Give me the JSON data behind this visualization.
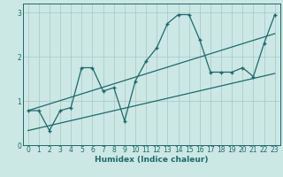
{
  "title": "",
  "xlabel": "Humidex (Indice chaleur)",
  "bg_color": "#cce8e4",
  "grid_color": "#aacccc",
  "line_color": "#1a6b6b",
  "xlim": [
    -0.5,
    23.5
  ],
  "ylim": [
    0,
    3.2
  ],
  "xticks": [
    0,
    1,
    2,
    3,
    4,
    5,
    6,
    7,
    8,
    9,
    10,
    11,
    12,
    13,
    14,
    15,
    16,
    17,
    18,
    19,
    20,
    21,
    22,
    23
  ],
  "yticks": [
    0,
    1,
    2,
    3
  ],
  "data_x": [
    0,
    1,
    2,
    3,
    4,
    5,
    6,
    7,
    8,
    9,
    10,
    11,
    12,
    13,
    14,
    15,
    16,
    17,
    18,
    19,
    20,
    21,
    22,
    23
  ],
  "data_y": [
    0.78,
    0.78,
    0.33,
    0.78,
    0.85,
    1.75,
    1.75,
    1.22,
    1.3,
    0.55,
    1.45,
    1.9,
    2.2,
    2.75,
    2.95,
    2.95,
    2.38,
    1.65,
    1.65,
    1.65,
    1.75,
    1.55,
    2.3,
    2.95
  ],
  "trend1_x": [
    0,
    23
  ],
  "trend1_y": [
    0.78,
    2.52
  ],
  "trend2_x": [
    0,
    23
  ],
  "trend2_y": [
    0.33,
    1.62
  ],
  "tick_fontsize": 5.5,
  "xlabel_fontsize": 6.5
}
